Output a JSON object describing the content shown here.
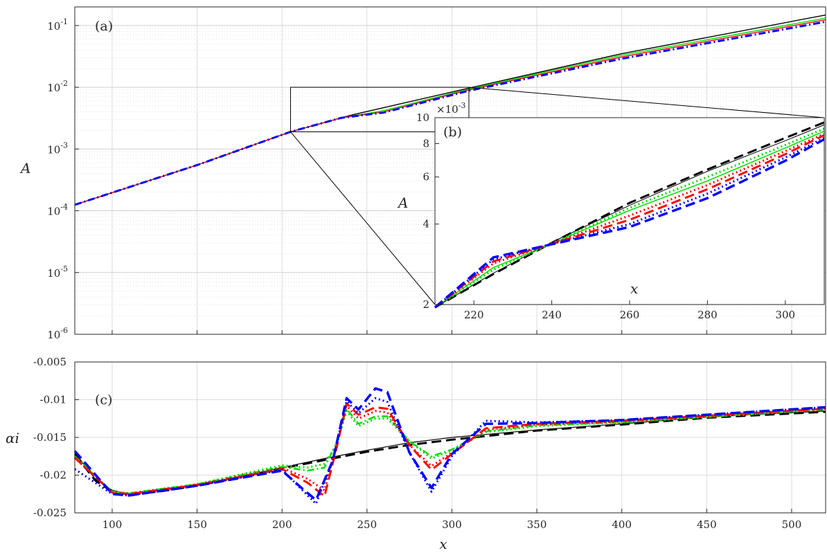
{
  "chart_data": [
    {
      "panel": "(a)",
      "type": "line",
      "ylabel": "A",
      "yscale": "log",
      "xlim": [
        78,
        520
      ],
      "ylim": [
        1e-06,
        0.2
      ],
      "yticks": [
        {
          "value": 1e-06,
          "base": "10",
          "exp": "-6"
        },
        {
          "value": 1e-05,
          "base": "10",
          "exp": "-5"
        },
        {
          "value": 0.0001,
          "base": "10",
          "exp": "-4"
        },
        {
          "value": 0.001,
          "base": "10",
          "exp": "-3"
        },
        {
          "value": 0.01,
          "base": "10",
          "exp": "-2"
        },
        {
          "value": 0.1,
          "base": "10",
          "exp": "-1"
        }
      ],
      "grid": true,
      "series": [
        {
          "color": "#000000",
          "style": "solid",
          "x": [
            78,
            150,
            205,
            240,
            310,
            400,
            520
          ],
          "y": [
            0.000125,
            0.00055,
            0.0019,
            0.0035,
            0.0097,
            0.035,
            0.148
          ]
        },
        {
          "color": "#00dd00",
          "style": "solid",
          "x": [
            78,
            150,
            205,
            235,
            260,
            310,
            400,
            520
          ],
          "y": [
            0.000125,
            0.00055,
            0.0019,
            0.0032,
            0.0042,
            0.0094,
            0.033,
            0.132
          ]
        },
        {
          "color": "#ff0000",
          "style": "solid",
          "x": [
            78,
            150,
            205,
            235,
            260,
            310,
            400,
            520
          ],
          "y": [
            0.000125,
            0.00055,
            0.0019,
            0.0032,
            0.004,
            0.0091,
            0.031,
            0.124
          ]
        },
        {
          "color": "#0000ff",
          "style": "dash-dot",
          "x": [
            78,
            150,
            205,
            235,
            260,
            310,
            400,
            520
          ],
          "y": [
            0.000125,
            0.00055,
            0.0019,
            0.0032,
            0.0039,
            0.0088,
            0.029,
            0.115
          ]
        }
      ]
    },
    {
      "panel": "(b)",
      "type": "line",
      "xlabel": "x",
      "ylabel": "A",
      "scale_label_base": "×10",
      "scale_label_exp": "-3",
      "xlim": [
        210,
        310
      ],
      "ylim": [
        2,
        10
      ],
      "yscale": "log",
      "xticks": [
        220,
        240,
        260,
        280,
        300
      ],
      "yticks": [
        2,
        4,
        6,
        8,
        10
      ],
      "grid": false,
      "series": [
        {
          "color": "#000000",
          "style": "dashed",
          "width": 3,
          "x": [
            210,
            225,
            240,
            260,
            280,
            300,
            310
          ],
          "y": [
            1.95,
            2.6,
            3.4,
            4.8,
            6.4,
            8.4,
            9.6
          ]
        },
        {
          "color": "#000000",
          "style": "solid",
          "width": 1,
          "x": [
            210,
            225,
            240,
            260,
            280,
            300,
            310
          ],
          "y": [
            1.95,
            2.62,
            3.42,
            4.7,
            6.3,
            8.2,
            9.4
          ]
        },
        {
          "color": "#00dd00",
          "style": "dotted",
          "width": 3,
          "x": [
            210,
            225,
            240,
            260,
            280,
            300,
            310
          ],
          "y": [
            1.95,
            2.7,
            3.38,
            4.6,
            6.0,
            7.9,
            9.1
          ]
        },
        {
          "color": "#00dd00",
          "style": "solid",
          "width": 1.5,
          "x": [
            210,
            225,
            240,
            260,
            280,
            300,
            310
          ],
          "y": [
            1.95,
            2.75,
            3.38,
            4.5,
            5.8,
            7.7,
            8.9
          ]
        },
        {
          "color": "#ff0000",
          "style": "dotted",
          "width": 3,
          "x": [
            210,
            225,
            240,
            260,
            280,
            300,
            310
          ],
          "y": [
            1.95,
            2.85,
            3.38,
            4.3,
            5.6,
            7.5,
            8.7
          ]
        },
        {
          "color": "#ff0000",
          "style": "dashed",
          "width": 3,
          "x": [
            210,
            225,
            240,
            260,
            280,
            300,
            310
          ],
          "y": [
            1.95,
            2.9,
            3.37,
            4.15,
            5.4,
            7.3,
            8.6
          ]
        },
        {
          "color": "#0000ff",
          "style": "dotted",
          "width": 3,
          "x": [
            210,
            225,
            240,
            260,
            280,
            300,
            310
          ],
          "y": [
            1.95,
            2.95,
            3.37,
            4.0,
            5.2,
            7.1,
            8.4
          ]
        },
        {
          "color": "#0000ff",
          "style": "dashed",
          "width": 3.5,
          "x": [
            210,
            225,
            240,
            260,
            280,
            300,
            310
          ],
          "y": [
            1.95,
            3.0,
            3.36,
            3.9,
            5.0,
            6.9,
            8.3
          ]
        }
      ]
    },
    {
      "panel": "(c)",
      "type": "line",
      "xlabel": "x",
      "ylabel": "αi",
      "xlim": [
        78,
        520
      ],
      "ylim": [
        -0.025,
        -0.005
      ],
      "xticks": [
        100,
        150,
        200,
        250,
        300,
        350,
        400,
        450,
        500
      ],
      "yticks": [
        -0.025,
        -0.02,
        -0.015,
        -0.01,
        -0.005
      ],
      "ytick_labels": [
        "-0.025",
        "-0.02",
        "-0.015",
        "-0.01",
        "-0.005"
      ],
      "grid": true,
      "series": [
        {
          "color": "#000000",
          "style": "solid",
          "width": 1.2,
          "x": [
            78,
            90,
            100,
            110,
            130,
            150,
            175,
            200,
            225,
            250,
            275,
            300,
            325,
            350,
            400,
            450,
            520
          ],
          "y": [
            -0.017,
            -0.0205,
            -0.022,
            -0.0225,
            -0.022,
            -0.0213,
            -0.0202,
            -0.019,
            -0.0178,
            -0.0167,
            -0.0157,
            -0.015,
            -0.0145,
            -0.014,
            -0.0132,
            -0.0123,
            -0.0115
          ]
        },
        {
          "color": "#000000",
          "style": "dashed",
          "width": 3,
          "x": [
            78,
            90,
            100,
            110,
            130,
            150,
            175,
            200,
            225,
            250,
            275,
            300,
            325,
            350,
            400,
            450,
            520
          ],
          "y": [
            -0.0172,
            -0.0207,
            -0.0222,
            -0.0226,
            -0.0221,
            -0.0214,
            -0.0203,
            -0.0191,
            -0.018,
            -0.0169,
            -0.016,
            -0.0153,
            -0.0147,
            -0.0141,
            -0.0133,
            -0.0124,
            -0.0116
          ]
        },
        {
          "color": "#00dd00",
          "style": "dotted",
          "width": 3,
          "x": [
            78,
            100,
            110,
            150,
            200,
            215,
            225,
            232,
            238,
            245,
            255,
            262,
            275,
            288,
            300,
            320,
            350,
            400,
            520
          ],
          "y": [
            -0.0175,
            -0.0222,
            -0.0224,
            -0.0212,
            -0.0187,
            -0.019,
            -0.0185,
            -0.016,
            -0.0115,
            -0.0135,
            -0.0125,
            -0.0125,
            -0.0155,
            -0.0178,
            -0.0167,
            -0.0143,
            -0.0135,
            -0.013,
            -0.0113
          ]
        },
        {
          "color": "#00dd00",
          "style": "dash-dot",
          "width": 2.5,
          "x": [
            78,
            100,
            110,
            150,
            200,
            215,
            225,
            232,
            238,
            245,
            255,
            262,
            275,
            288,
            300,
            320,
            350,
            400,
            520
          ],
          "y": [
            -0.0175,
            -0.0222,
            -0.0224,
            -0.0212,
            -0.0189,
            -0.0194,
            -0.019,
            -0.0158,
            -0.0112,
            -0.0132,
            -0.0122,
            -0.0122,
            -0.0155,
            -0.0175,
            -0.0166,
            -0.0142,
            -0.0134,
            -0.013,
            -0.0113
          ]
        },
        {
          "color": "#ff0000",
          "style": "dotted",
          "width": 3,
          "x": [
            78,
            100,
            110,
            150,
            200,
            215,
            225,
            232,
            238,
            245,
            255,
            262,
            275,
            288,
            300,
            320,
            350,
            400,
            520
          ],
          "y": [
            -0.0177,
            -0.0223,
            -0.0225,
            -0.0213,
            -0.019,
            -0.0205,
            -0.022,
            -0.016,
            -0.0108,
            -0.0125,
            -0.0115,
            -0.0117,
            -0.016,
            -0.0188,
            -0.017,
            -0.014,
            -0.0133,
            -0.0129,
            -0.0112
          ]
        },
        {
          "color": "#ff0000",
          "style": "dashed",
          "width": 3,
          "x": [
            78,
            100,
            110,
            150,
            200,
            215,
            225,
            232,
            238,
            245,
            255,
            262,
            275,
            288,
            300,
            320,
            350,
            400,
            520
          ],
          "y": [
            -0.0177,
            -0.0223,
            -0.0225,
            -0.0213,
            -0.0192,
            -0.021,
            -0.0228,
            -0.0165,
            -0.0105,
            -0.012,
            -0.011,
            -0.0112,
            -0.016,
            -0.0193,
            -0.0172,
            -0.0138,
            -0.0132,
            -0.0128,
            -0.0112
          ]
        },
        {
          "color": "#0000ff",
          "style": "dotted",
          "width": 3,
          "x": [
            78,
            100,
            110,
            150,
            200,
            212,
            220,
            230,
            238,
            245,
            255,
            262,
            275,
            288,
            300,
            320,
            350,
            400,
            520
          ],
          "y": [
            -0.0192,
            -0.0225,
            -0.0227,
            -0.0214,
            -0.0193,
            -0.022,
            -0.0238,
            -0.018,
            -0.0102,
            -0.0118,
            -0.0098,
            -0.0103,
            -0.017,
            -0.0222,
            -0.0175,
            -0.0128,
            -0.013,
            -0.0127,
            -0.011
          ]
        },
        {
          "color": "#0000ff",
          "style": "dashed",
          "width": 3.5,
          "x": [
            78,
            100,
            110,
            150,
            200,
            212,
            220,
            230,
            238,
            245,
            255,
            262,
            275,
            288,
            300,
            320,
            350,
            400,
            520
          ],
          "y": [
            -0.0168,
            -0.0225,
            -0.0227,
            -0.0214,
            -0.0194,
            -0.0218,
            -0.0233,
            -0.018,
            -0.0098,
            -0.0113,
            -0.0085,
            -0.009,
            -0.017,
            -0.0217,
            -0.0172,
            -0.0132,
            -0.0131,
            -0.0127,
            -0.011
          ]
        }
      ]
    }
  ]
}
